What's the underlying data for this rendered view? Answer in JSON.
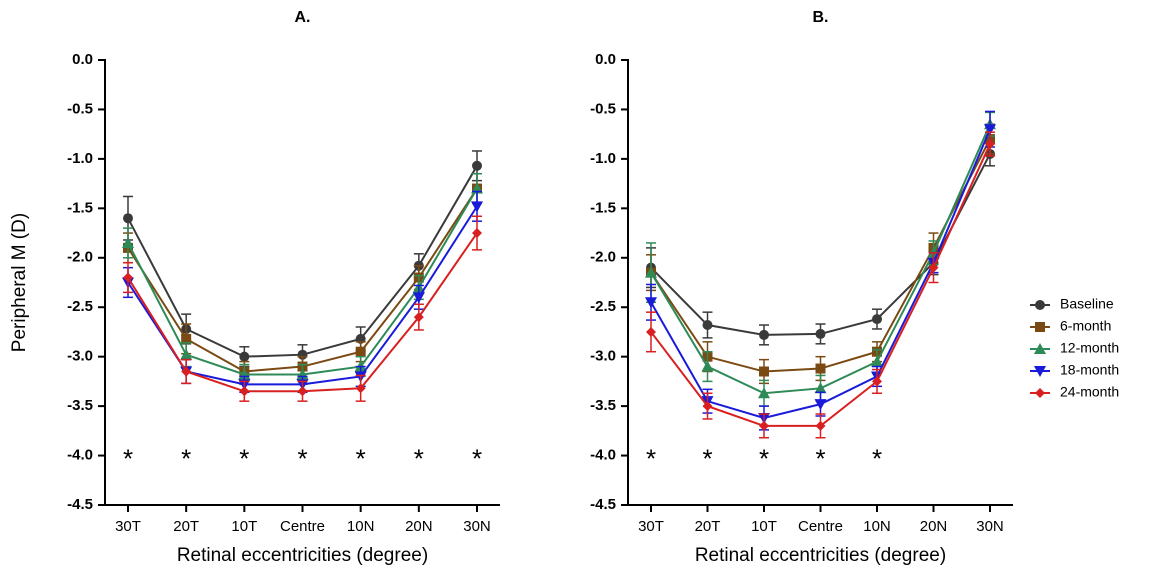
{
  "chart_data": [
    {
      "type": "line",
      "title": "A.",
      "y_label": "Peripheral  M (D)",
      "x_label": "Retinal eccentricities (degree)",
      "categories": [
        "30T",
        "20T",
        "10T",
        "Centre",
        "10N",
        "20N",
        "30N"
      ],
      "ylim": [
        -4.5,
        0
      ],
      "yticks": [
        {
          "value": 0,
          "label": "0.0"
        },
        -0.5,
        {
          "value": -1,
          "label": "-1.0"
        },
        -1.5,
        {
          "value": -2,
          "label": "-2.0"
        },
        -2.5,
        {
          "value": -3,
          "label": "-3.0"
        },
        -3.5,
        {
          "value": -4,
          "label": "-4.0"
        },
        -4.5
      ],
      "significance": [
        "*",
        "*",
        "*",
        "*",
        "*",
        "*",
        "*"
      ],
      "series": [
        {
          "name": "Baseline",
          "color": "#3a3a3a",
          "marker": "circle",
          "values": [
            -1.6,
            -2.72,
            -3.0,
            -2.98,
            -2.82,
            -2.08,
            -1.07
          ],
          "errors": [
            0.22,
            0.15,
            0.1,
            0.1,
            0.12,
            0.12,
            0.15
          ]
        },
        {
          "name": "6-month",
          "color": "#7b4a12",
          "marker": "square",
          "values": [
            -1.9,
            -2.82,
            -3.15,
            -3.1,
            -2.95,
            -2.2,
            -1.3
          ],
          "errors": [
            0.15,
            0.15,
            0.1,
            0.1,
            0.1,
            0.12,
            0.15
          ]
        },
        {
          "name": "12-month",
          "color": "#2e8b57",
          "marker": "triangle-up",
          "values": [
            -1.85,
            -2.98,
            -3.18,
            -3.18,
            -3.1,
            -2.3,
            -1.3
          ],
          "errors": [
            0.15,
            0.12,
            0.1,
            0.1,
            0.1,
            0.12,
            0.15
          ]
        },
        {
          "name": "18-month",
          "color": "#1a1adb",
          "marker": "triangle-down",
          "values": [
            -2.25,
            -3.15,
            -3.28,
            -3.28,
            -3.2,
            -2.4,
            -1.48
          ],
          "errors": [
            0.15,
            0.12,
            0.08,
            0.08,
            0.1,
            0.12,
            0.15
          ]
        },
        {
          "name": "24-month",
          "color": "#d92020",
          "marker": "diamond",
          "values": [
            -2.2,
            -3.15,
            -3.35,
            -3.35,
            -3.32,
            -2.6,
            -1.75
          ],
          "errors": [
            0.15,
            0.12,
            0.1,
            0.1,
            0.13,
            0.13,
            0.17
          ]
        }
      ]
    },
    {
      "type": "line",
      "title": "B.",
      "x_label": "Retinal eccentricities (degree)",
      "legend": "right",
      "categories": [
        "30T",
        "20T",
        "10T",
        "Centre",
        "10N",
        "20N",
        "30N"
      ],
      "ylim": [
        -4.5,
        0
      ],
      "yticks": [
        {
          "value": 0,
          "label": "0.0"
        },
        -0.5,
        {
          "value": -1,
          "label": "-1.0"
        },
        -1.5,
        {
          "value": -2,
          "label": "-2.0"
        },
        -2.5,
        {
          "value": -3,
          "label": "-3.0"
        },
        -3.5,
        {
          "value": -4,
          "label": "-4.0"
        },
        -4.5
      ],
      "significance": [
        "*",
        "*",
        "*",
        "*",
        "*",
        null,
        null
      ],
      "series": [
        {
          "name": "Baseline",
          "color": "#3a3a3a",
          "marker": "circle",
          "values": [
            -2.1,
            -2.68,
            -2.78,
            -2.77,
            -2.62,
            -2.05,
            -0.95
          ],
          "errors": [
            0.2,
            0.13,
            0.1,
            0.1,
            0.1,
            0.12,
            0.12
          ]
        },
        {
          "name": "6-month",
          "color": "#7b4a12",
          "marker": "square",
          "values": [
            -2.15,
            -3.0,
            -3.15,
            -3.12,
            -2.95,
            -1.9,
            -0.8
          ],
          "errors": [
            0.18,
            0.15,
            0.12,
            0.12,
            0.1,
            0.15,
            0.15
          ]
        },
        {
          "name": "12-month",
          "color": "#2e8b57",
          "marker": "triangle-up",
          "values": [
            -2.15,
            -3.1,
            -3.37,
            -3.32,
            -3.05,
            -1.95,
            -0.65
          ],
          "errors": [
            0.3,
            0.15,
            0.13,
            0.13,
            0.12,
            0.12,
            0.12
          ]
        },
        {
          "name": "18-month",
          "color": "#1a1adb",
          "marker": "triangle-down",
          "values": [
            -2.45,
            -3.45,
            -3.62,
            -3.48,
            -3.2,
            -2.05,
            -0.7
          ],
          "errors": [
            0.18,
            0.12,
            0.12,
            0.12,
            0.1,
            0.1,
            0.18
          ]
        },
        {
          "name": "24-month",
          "color": "#d92020",
          "marker": "diamond",
          "values": [
            -2.75,
            -3.5,
            -3.7,
            -3.7,
            -3.25,
            -2.1,
            -0.85
          ],
          "errors": [
            0.2,
            0.13,
            0.12,
            0.12,
            0.12,
            0.15,
            0.12
          ]
        }
      ]
    }
  ]
}
